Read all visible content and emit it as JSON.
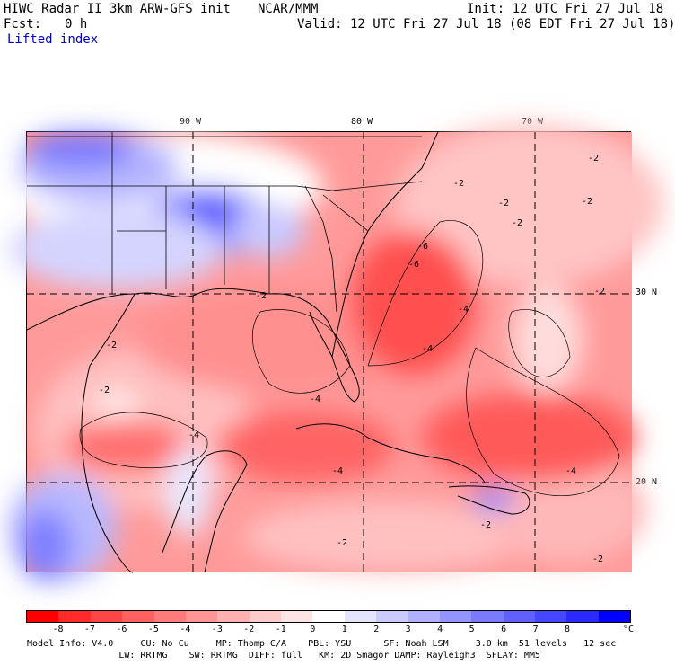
{
  "header": {
    "title_left": "HIWC Radar II 3km ARW-GFS init",
    "title_mid": "NCAR/MMM",
    "init": "Init: 12 UTC Fri 27 Jul 18",
    "fcst_label": "Fcst:",
    "fcst_value": "0 h",
    "valid": "Valid: 12 UTC Fri 27 Jul 18 (08 EDT Fri 27 Jul 18)",
    "field_name": "Lifted index"
  },
  "map": {
    "lon_labels": [
      "90 W",
      "80 W",
      "70 W"
    ],
    "lat_labels": [
      "30 N",
      "20 N"
    ],
    "contour_label": "-2",
    "contour_labels_other": [
      "-4",
      "-6"
    ]
  },
  "colorbar": {
    "ticks": [
      "-8",
      "-7",
      "-6",
      "-5",
      "-4",
      "-3",
      "-2",
      "-1",
      "0",
      "1",
      "2",
      "3",
      "4",
      "5",
      "6",
      "7",
      "8"
    ],
    "unit": "°C",
    "colors": [
      "#ff0000",
      "#ff2a2a",
      "#ff4646",
      "#ff6060",
      "#ff7a7a",
      "#ff9494",
      "#ffb0b0",
      "#ffcaca",
      "#ffe4e4",
      "#ffffff",
      "#e4e4ff",
      "#cacaff",
      "#b0b0ff",
      "#9494ff",
      "#7a7aff",
      "#6060ff",
      "#4646ff",
      "#2a2aff",
      "#0000ff"
    ]
  },
  "footer": {
    "line1": "Model Info: V4.0     CU: No Cu     MP: Thomp C/A    PBL: YSU      SF: Noah LSM     3.0 km  51 levels   12 sec",
    "line2": "                 LW: RRTMG    SW: RRTMG  DIFF: full   KM: 2D Smagor DAMP: Rayleigh3  SFLAY: MM5"
  }
}
